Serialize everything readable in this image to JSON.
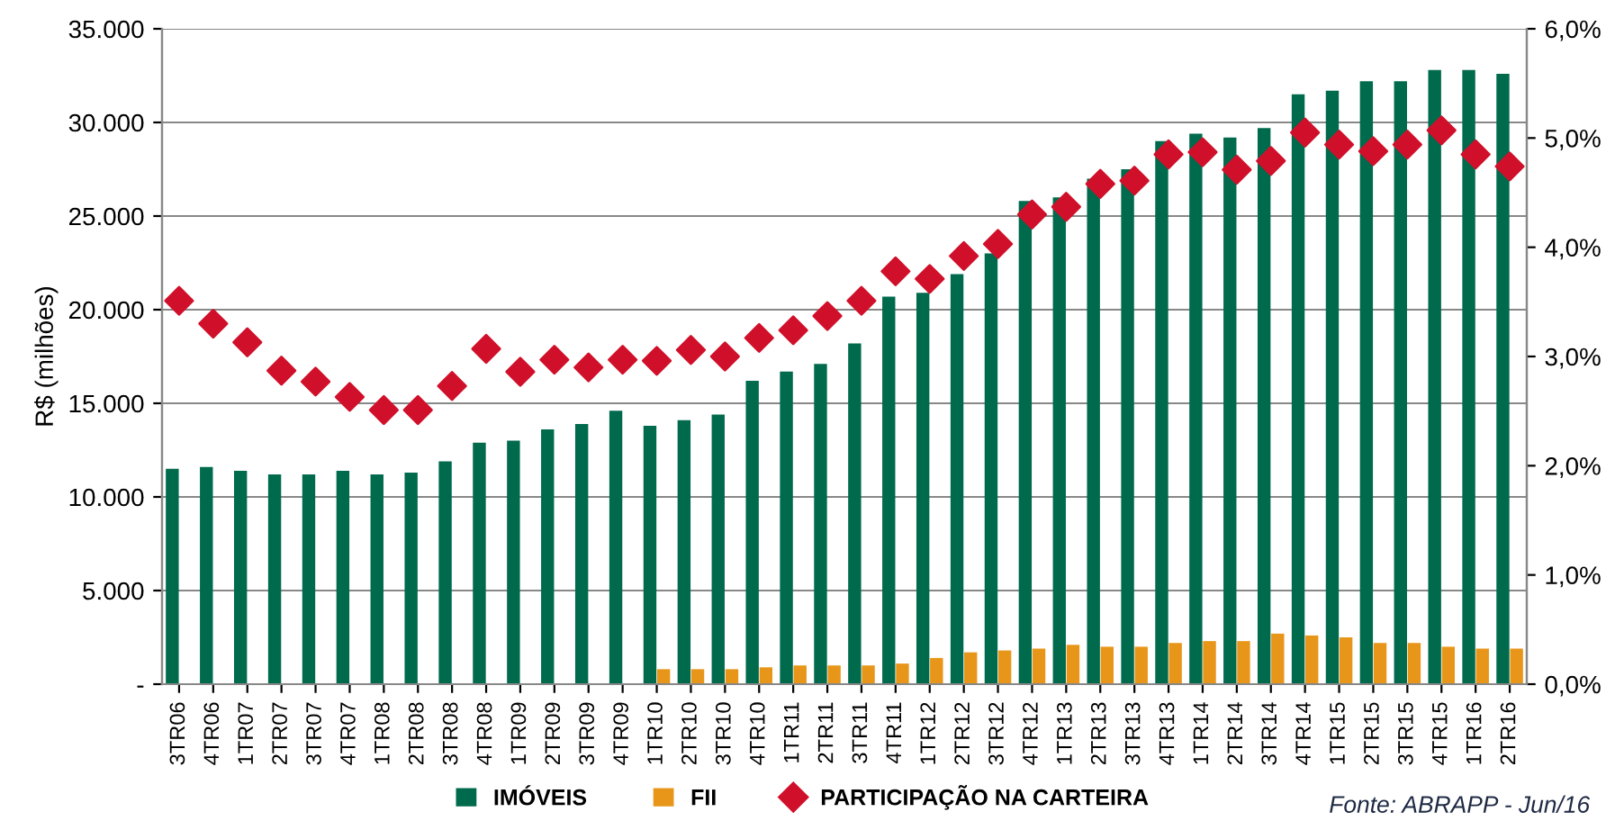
{
  "chart_data": {
    "type": "bar",
    "ylabel": "R$ (milhões)",
    "categories": [
      "3TR06",
      "4TR06",
      "1TR07",
      "2TR07",
      "3TR07",
      "4TR07",
      "1TR08",
      "2TR08",
      "3TR08",
      "4TR08",
      "1TR09",
      "2TR09",
      "3TR09",
      "4TR09",
      "1TR10",
      "2TR10",
      "3TR10",
      "4TR10",
      "1TR11",
      "2TR11",
      "3TR11",
      "4TR11",
      "1TR12",
      "2TR12",
      "3TR12",
      "4TR12",
      "1TR13",
      "2TR13",
      "3TR13",
      "4TR13",
      "1TR14",
      "2TR14",
      "3TR14",
      "4TR14",
      "1TR15",
      "2TR15",
      "3TR15",
      "4TR15",
      "1TR16",
      "2TR16"
    ],
    "series": [
      {
        "name": "IMÓVEIS",
        "color": "#006a4d",
        "values": [
          11500,
          11600,
          11400,
          11200,
          11200,
          11400,
          11200,
          11300,
          11900,
          12900,
          13000,
          13600,
          13900,
          14600,
          13800,
          14100,
          14400,
          16200,
          16700,
          17100,
          18200,
          20700,
          20900,
          21900,
          23000,
          25800,
          26000,
          27000,
          27500,
          29000,
          29400,
          29200,
          29700,
          31500,
          31700,
          32200,
          32200,
          32800,
          32800,
          32600
        ]
      },
      {
        "name": "FII",
        "color": "#e8961a",
        "values": [
          null,
          null,
          null,
          null,
          null,
          null,
          null,
          null,
          null,
          null,
          null,
          null,
          null,
          null,
          800,
          800,
          800,
          900,
          1000,
          1000,
          1000,
          1100,
          1400,
          1700,
          1800,
          1900,
          2100,
          2000,
          2000,
          2200,
          2300,
          2300,
          2700,
          2600,
          2500,
          2200,
          2200,
          2000,
          1900,
          1900
        ]
      },
      {
        "name": "PARTICIPAÇÃO NA CARTEIRA",
        "type": "scatter",
        "axis": "y2",
        "marker": "diamond",
        "color": "#d0102a",
        "values": [
          3.51,
          3.3,
          3.13,
          2.87,
          2.77,
          2.63,
          2.51,
          2.51,
          2.73,
          3.07,
          2.86,
          2.97,
          2.9,
          2.97,
          2.96,
          3.06,
          3.0,
          3.17,
          3.24,
          3.37,
          3.51,
          3.78,
          3.71,
          3.92,
          4.03,
          4.3,
          4.37,
          4.58,
          4.61,
          4.85,
          4.87,
          4.71,
          4.79,
          5.05,
          4.94,
          4.88,
          4.94,
          5.07,
          4.85,
          4.74
        ]
      }
    ],
    "ylim": [
      0,
      35000
    ],
    "yticks": [
      {
        "value": 0,
        "label": "-"
      },
      {
        "value": 5000,
        "label": "5.000"
      },
      {
        "value": 10000,
        "label": "10.000"
      },
      {
        "value": 15000,
        "label": "15.000"
      },
      {
        "value": 20000,
        "label": "20.000"
      },
      {
        "value": 25000,
        "label": "25.000"
      },
      {
        "value": 30000,
        "label": "30.000"
      },
      {
        "value": 35000,
        "label": "35.000"
      }
    ],
    "y2lim": [
      0,
      6
    ],
    "y2ticks": [
      {
        "value": 0,
        "label": "0,0%"
      },
      {
        "value": 1,
        "label": "1,0%"
      },
      {
        "value": 2,
        "label": "2,0%"
      },
      {
        "value": 3,
        "label": "3,0%"
      },
      {
        "value": 4,
        "label": "4,0%"
      },
      {
        "value": 5,
        "label": "5,0%"
      },
      {
        "value": 6,
        "label": "6,0%"
      }
    ],
    "grid": "y",
    "legend": "bottom",
    "annotations": [
      "Fonte: ABRAPP - Jun/16"
    ]
  }
}
